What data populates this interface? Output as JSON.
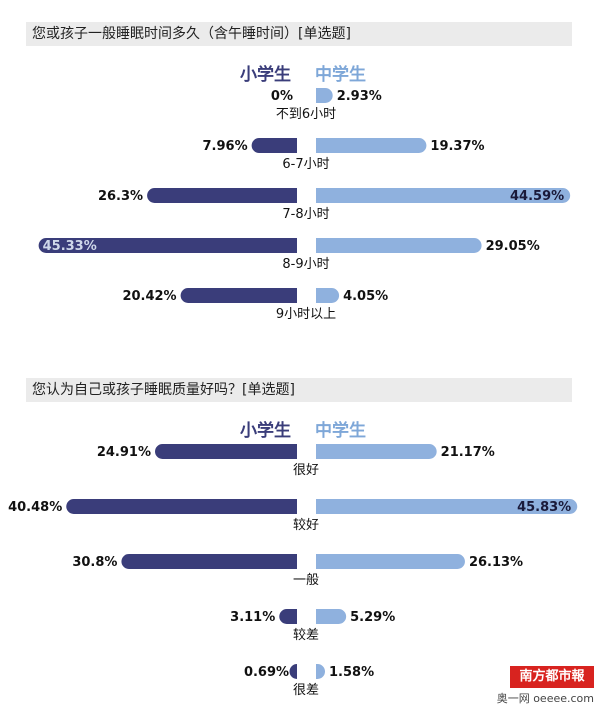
{
  "chart_data": [
    {
      "type": "bar",
      "title": "您或孩子一般睡眠时间多久（含午睡时间）[单选题]",
      "series": [
        {
          "name": "小学生",
          "color": "#3a3d7a",
          "values": [
            0,
            7.96,
            26.3,
            45.33,
            20.42
          ]
        },
        {
          "name": "中学生",
          "color": "#8fb1de",
          "values": [
            2.93,
            19.37,
            44.59,
            29.05,
            4.05
          ]
        }
      ],
      "categories": [
        "不到6小时",
        "6-7小时",
        "7-8小时",
        "8-9小时",
        "9小时以上"
      ],
      "labels_primary": [
        "0%",
        "7.96%",
        "26.3%",
        "45.33%",
        "20.42%"
      ],
      "labels_middle": [
        "2.93%",
        "19.37%",
        "44.59%",
        "29.05%",
        "4.05%"
      ]
    },
    {
      "type": "bar",
      "title": "您认为自己或孩子睡眠质量好吗？[单选题]",
      "series": [
        {
          "name": "小学生",
          "color": "#3a3d7a",
          "values": [
            24.91,
            40.48,
            30.8,
            3.11,
            0.69
          ]
        },
        {
          "name": "中学生",
          "color": "#8fb1de",
          "values": [
            21.17,
            45.83,
            26.13,
            5.29,
            1.58
          ]
        }
      ],
      "categories": [
        "很好",
        "较好",
        "一般",
        "较差",
        "很差"
      ],
      "labels_primary": [
        "24.91%",
        "40.48%",
        "30.8%",
        "3.11%",
        "0.69%"
      ],
      "labels_middle": [
        "21.17%",
        "45.83%",
        "26.13%",
        "5.29%",
        "1.58%"
      ]
    }
  ],
  "logo": {
    "name": "南方都市報",
    "sub": "奥一网 oeeee.com"
  }
}
